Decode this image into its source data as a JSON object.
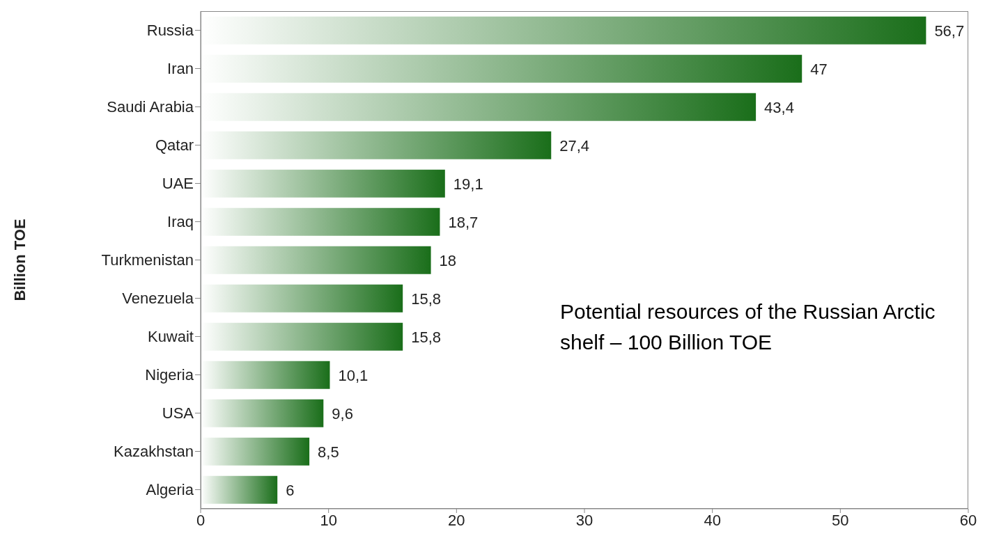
{
  "chart_data": {
    "type": "bar",
    "orientation": "horizontal",
    "ylabel": "Billion TOE",
    "categories": [
      "Russia",
      "Iran",
      "Saudi Arabia",
      "Qatar",
      "UAE",
      "Iraq",
      "Turkmenistan",
      "Venezuela",
      "Kuwait",
      "Nigeria",
      "USA",
      "Kazakhstan",
      "Algeria"
    ],
    "values": [
      56.7,
      47,
      43.4,
      27.4,
      19.1,
      18.7,
      18,
      15.8,
      15.8,
      10.1,
      9.6,
      8.5,
      6
    ],
    "value_labels": [
      "56,7",
      "47",
      "43,4",
      "27,4",
      "19,1",
      "18,7",
      "18",
      "15,8",
      "15,8",
      "10,1",
      "9,6",
      "8,5",
      "6"
    ],
    "color": "#1a6e1a",
    "xlim": [
      0,
      60
    ],
    "xticks": [
      0,
      10,
      20,
      30,
      40,
      50,
      60
    ],
    "grid": false,
    "annotations": [
      "Potential resources of the Russian Arctic shelf – 100 Billion TOE"
    ]
  }
}
